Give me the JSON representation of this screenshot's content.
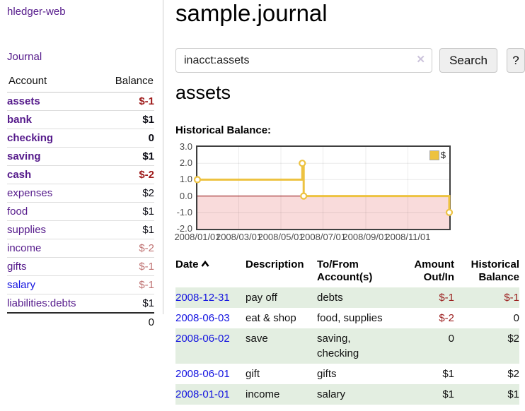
{
  "app": {
    "title": "hledger-web"
  },
  "sidebar": {
    "journal_link": "Journal",
    "accounts": {
      "headers": {
        "account": "Account",
        "balance": "Balance"
      },
      "rows": [
        {
          "name": "assets",
          "balance": "$-1",
          "level": 1,
          "bold": true,
          "link": "purple",
          "bal_style": "neg-strong"
        },
        {
          "name": "bank",
          "balance": "$1",
          "level": 2,
          "bold": true,
          "link": "purple",
          "bal_style": "pos"
        },
        {
          "name": "checking",
          "balance": "0",
          "level": 3,
          "bold": true,
          "link": "purple",
          "bal_style": "pos"
        },
        {
          "name": "saving",
          "balance": "$1",
          "level": 3,
          "bold": true,
          "link": "purple",
          "bal_style": "pos"
        },
        {
          "name": "cash",
          "balance": "$-2",
          "level": 2,
          "bold": true,
          "link": "purple",
          "bal_style": "neg-strong"
        },
        {
          "name": "expenses",
          "balance": "$2",
          "level": 1,
          "bold": false,
          "link": "purple",
          "bal_style": "pos"
        },
        {
          "name": "food",
          "balance": "$1",
          "level": 2,
          "bold": false,
          "link": "purple",
          "bal_style": "pos"
        },
        {
          "name": "supplies",
          "balance": "$1",
          "level": 2,
          "bold": false,
          "link": "purple",
          "bal_style": "pos"
        },
        {
          "name": "income",
          "balance": "$-2",
          "level": 1,
          "bold": false,
          "link": "purple",
          "bal_style": "neg-muted"
        },
        {
          "name": "gifts",
          "balance": "$-1",
          "level": 2,
          "bold": false,
          "link": "purple",
          "bal_style": "neg-muted"
        },
        {
          "name": "salary",
          "balance": "$-1",
          "level": 2,
          "bold": false,
          "link": "blue",
          "bal_style": "neg-muted"
        },
        {
          "name": "liabilities:debts",
          "balance": "$1",
          "level": 1,
          "bold": false,
          "link": "purple",
          "bal_style": "pos"
        }
      ],
      "total": "0"
    }
  },
  "main": {
    "title": "sample.journal",
    "search": {
      "value": "inacct:assets",
      "clear_icon": "✕",
      "button_label": "Search",
      "help_label": "?"
    },
    "account_heading": "assets",
    "chart_label": "Historical Balance:",
    "register": {
      "headers": {
        "date": "Date",
        "description": "Description",
        "accounts": "To/From Account(s)",
        "amount": "Amount Out/In",
        "balance": "Historical Balance"
      },
      "rows": [
        {
          "date": "2008-12-31",
          "description": "pay off",
          "accounts": "debts",
          "amount": "$-1",
          "amount_neg": true,
          "balance": "$-1",
          "balance_neg": true
        },
        {
          "date": "2008-06-03",
          "description": "eat & shop",
          "accounts": "food, supplies",
          "amount": "$-2",
          "amount_neg": true,
          "balance": "0",
          "balance_neg": false
        },
        {
          "date": "2008-06-02",
          "description": "save",
          "accounts": "saving, checking",
          "amount": "0",
          "amount_neg": false,
          "balance": "$2",
          "balance_neg": false
        },
        {
          "date": "2008-06-01",
          "description": "gift",
          "accounts": "gifts",
          "amount": "$1",
          "amount_neg": false,
          "balance": "$2",
          "balance_neg": false
        },
        {
          "date": "2008-01-01",
          "description": "income",
          "accounts": "salary",
          "amount": "$1",
          "amount_neg": false,
          "balance": "$1",
          "balance_neg": false
        }
      ]
    }
  },
  "chart_data": {
    "type": "line",
    "step": true,
    "title": "Historical Balance",
    "series": [
      {
        "name": "$",
        "color": "#EDC240",
        "points": [
          [
            "2008-01-01",
            1
          ],
          [
            "2008-06-01",
            2
          ],
          [
            "2008-06-03",
            0
          ],
          [
            "2008-12-31",
            -1
          ]
        ]
      }
    ],
    "x_ticks": [
      "2008/01/01",
      "2008/03/01",
      "2008/05/01",
      "2008/07/01",
      "2008/09/01",
      "2008/11/01"
    ],
    "y_ticks": [
      3.0,
      2.0,
      1.0,
      0.0,
      -1.0,
      -2.0
    ],
    "xlim": [
      "2008-01-01",
      "2008-12-31"
    ],
    "ylim": [
      -2,
      3
    ],
    "grid": true,
    "legend_position": "top-right",
    "negative_fill": "#F9DBDB",
    "zero_line_color": "#8B0000"
  },
  "colors": {
    "link_purple": "#551A8B",
    "link_blue": "#1414E0",
    "negative_strong": "#9E1A1A",
    "negative_muted": "#BF7272",
    "row_green": "#E3EEE1",
    "chart_gold": "#EDC240",
    "chart_negative_fill": "#F9DBDB",
    "chart_zero_line": "#8B0000"
  }
}
